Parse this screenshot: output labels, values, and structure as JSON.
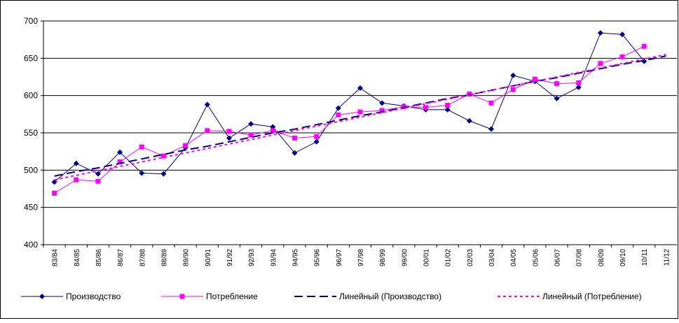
{
  "chart_data": {
    "type": "line",
    "categories": [
      "83/84",
      "84/85",
      "85/86",
      "86/87",
      "87/88",
      "88/89",
      "89/90",
      "90/91",
      "91/92",
      "92/93",
      "93/94",
      "94/95",
      "95/96",
      "96/97",
      "97/98",
      "98/99",
      "99/00",
      "00/01",
      "01/02",
      "02/03",
      "03/04",
      "04/05",
      "05/06",
      "06/07",
      "07/08",
      "08/09",
      "09/10",
      "10/11",
      "11/12"
    ],
    "series": [
      {
        "name": "Производство",
        "color": "#000080",
        "marker": "diamond",
        "dash": "solid",
        "values": [
          484,
          509,
          495,
          524,
          496,
          495,
          530,
          588,
          543,
          562,
          558,
          523,
          538,
          583,
          610,
          590,
          586,
          581,
          581,
          566,
          555,
          627,
          619,
          596,
          611,
          684,
          682,
          646,
          null
        ]
      },
      {
        "name": "Потребление",
        "color": "#ff00ff",
        "marker": "square",
        "dash": "solid",
        "values": [
          469,
          487,
          485,
          511,
          531,
          519,
          533,
          553,
          552,
          547,
          553,
          543,
          545,
          574,
          578,
          580,
          585,
          584,
          587,
          602,
          590,
          608,
          622,
          616,
          617,
          643,
          652,
          666,
          null
        ]
      },
      {
        "name": "Линейный (Производство)",
        "color": "#000080",
        "marker": "none",
        "dash": "long",
        "values": [
          492,
          498,
          503,
          509,
          515,
          521,
          527,
          532,
          538,
          544,
          550,
          555,
          561,
          567,
          573,
          578,
          584,
          590,
          596,
          601,
          607,
          613,
          619,
          624,
          630,
          636,
          642,
          647,
          653
        ]
      },
      {
        "name": "Линейный (Потребление)",
        "color": "#ff00ff",
        "marker": "none",
        "dash": "short",
        "values": [
          487,
          493,
          499,
          505,
          511,
          517,
          523,
          529,
          535,
          541,
          547,
          553,
          559,
          565,
          571,
          577,
          583,
          589,
          595,
          601,
          607,
          613,
          619,
          625,
          631,
          637,
          643,
          649,
          655
        ]
      }
    ],
    "ylim": [
      400,
      700
    ],
    "yticks": [
      400,
      450,
      500,
      550,
      600,
      650,
      700
    ],
    "grid": true,
    "legend": "bottom"
  }
}
